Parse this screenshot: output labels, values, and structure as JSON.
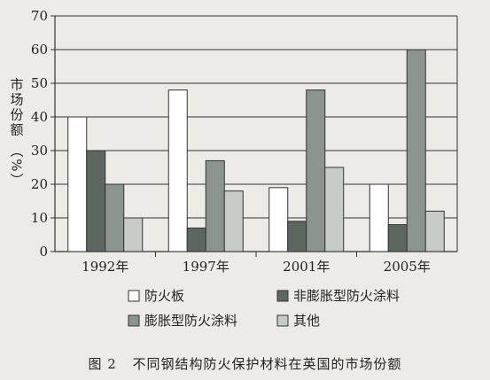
{
  "colors": {
    "background": "#ecebe6",
    "axis": "#333333",
    "grid": "#333333"
  },
  "caption": {
    "number": "图 2",
    "text": "不同钢结构防火保护材料在英国的市场份额"
  },
  "chart_data": {
    "type": "bar",
    "ylabel": "市场份额 （%）",
    "xlabel": "",
    "ylim": [
      0,
      70
    ],
    "yticks": [
      0,
      10,
      20,
      30,
      40,
      50,
      60,
      70
    ],
    "grid": true,
    "legend_position": "bottom",
    "categories": [
      "1992年",
      "1997年",
      "2001年",
      "2005年"
    ],
    "series": [
      {
        "name": "防火板",
        "values": [
          40,
          48,
          19,
          20
        ],
        "color": "#ffffff"
      },
      {
        "name": "非膨胀型防火涂料",
        "values": [
          30,
          7,
          9,
          8
        ],
        "color": "#5c6760"
      },
      {
        "name": "膨胀型防火涂料",
        "values": [
          20,
          27,
          48,
          60
        ],
        "color": "#8c958d"
      },
      {
        "name": "其他",
        "values": [
          10,
          18,
          25,
          12
        ],
        "color": "#c8ccc6"
      }
    ]
  }
}
